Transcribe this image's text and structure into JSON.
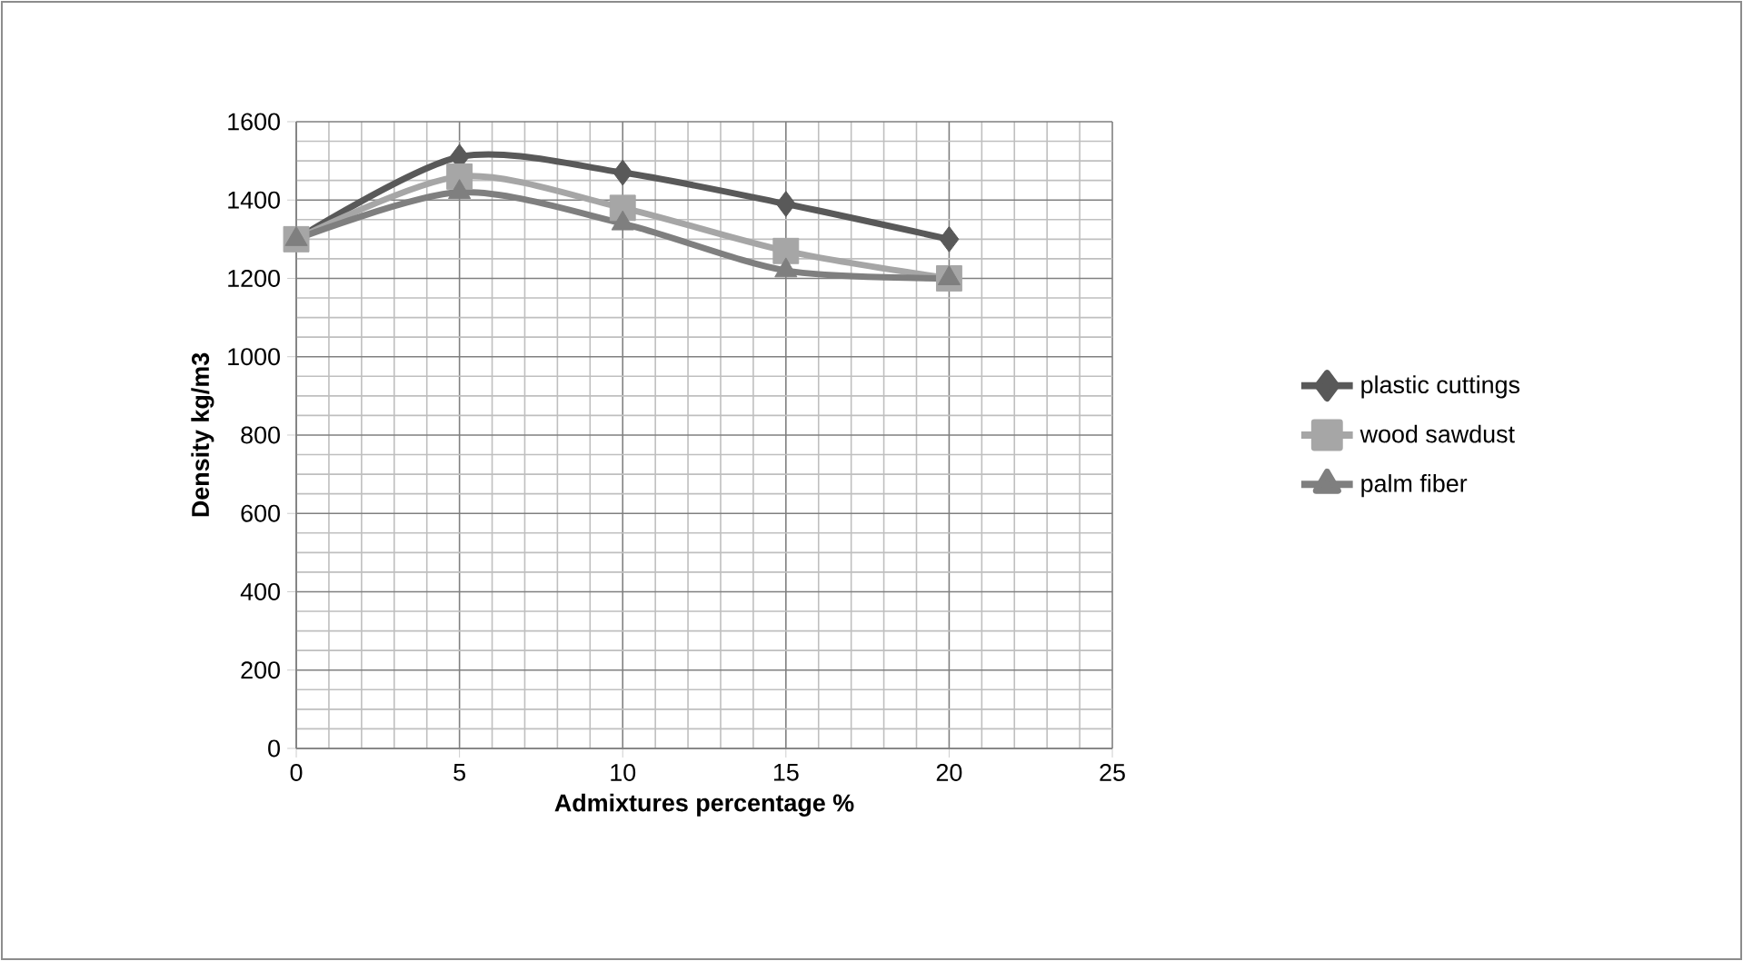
{
  "chart_data": {
    "type": "line",
    "xlabel": "Admixtures  percentage %",
    "ylabel": "Density  kg/m3",
    "x": [
      0,
      5,
      10,
      15,
      20
    ],
    "series": [
      {
        "name": "plastic  cuttings",
        "color": "#595959",
        "marker": "diamond",
        "values": [
          1300,
          1510,
          1470,
          1390,
          1300
        ]
      },
      {
        "name": "wood sawdust",
        "color": "#a6a6a6",
        "marker": "square",
        "values": [
          1300,
          1460,
          1380,
          1270,
          1200
        ]
      },
      {
        "name": "palm  fiber",
        "color": "#7f7f7f",
        "marker": "triangle",
        "values": [
          1300,
          1420,
          1340,
          1220,
          1200
        ]
      }
    ],
    "xlim": [
      0,
      25
    ],
    "xticks": [
      0,
      5,
      10,
      15,
      20,
      25
    ],
    "ylim": [
      0,
      1600
    ],
    "yticks": [
      0,
      200,
      400,
      600,
      800,
      1000,
      1200,
      1400,
      1600
    ],
    "grid": true,
    "legend": "right",
    "line_style": "solid"
  }
}
